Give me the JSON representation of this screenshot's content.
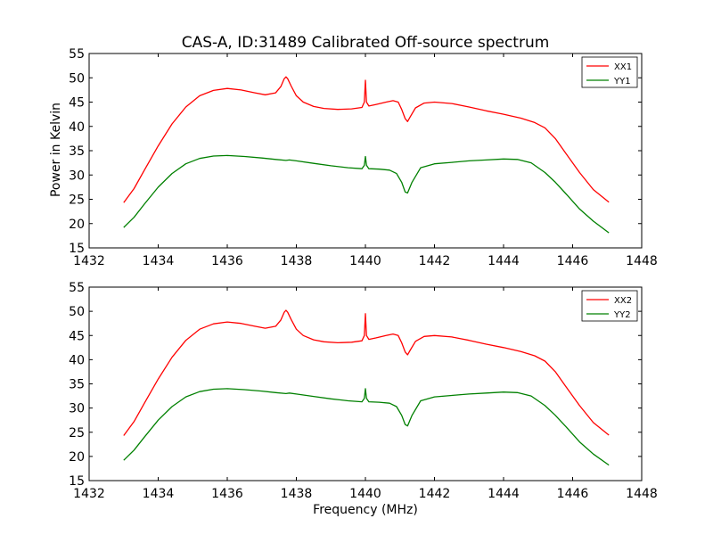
{
  "figure": {
    "title": "CAS-A, ID:31489 Calibrated Off-source spectrum",
    "xlabel": "Frequency (MHz)",
    "ylabel": "Power in Kelvin"
  },
  "colors": {
    "red": "#ff0000",
    "green": "#008000"
  },
  "chart_data": [
    {
      "type": "line",
      "title": "CAS-A, ID:31489 Calibrated Off-source spectrum",
      "xlabel": "",
      "ylabel": "Power in Kelvin",
      "xlim": [
        1432,
        1448
      ],
      "ylim": [
        15,
        55
      ],
      "xticks": [
        1432,
        1434,
        1436,
        1438,
        1440,
        1442,
        1444,
        1446,
        1448
      ],
      "yticks": [
        15,
        20,
        25,
        30,
        35,
        40,
        45,
        50,
        55
      ],
      "grid": false,
      "legend": "top-right",
      "series": [
        {
          "name": "XX1",
          "color": "#ff0000",
          "x": [
            1433.0,
            1433.3,
            1433.6,
            1434.0,
            1434.4,
            1434.8,
            1435.2,
            1435.6,
            1436.0,
            1436.4,
            1436.8,
            1437.1,
            1437.4,
            1437.55,
            1437.65,
            1437.7,
            1437.75,
            1437.85,
            1438.0,
            1438.2,
            1438.5,
            1438.8,
            1439.2,
            1439.6,
            1439.9,
            1439.97,
            1440.0,
            1440.03,
            1440.1,
            1440.3,
            1440.6,
            1440.8,
            1440.95,
            1441.05,
            1441.15,
            1441.22,
            1441.3,
            1441.45,
            1441.7,
            1442.0,
            1442.5,
            1443.0,
            1443.5,
            1444.0,
            1444.5,
            1444.9,
            1445.2,
            1445.5,
            1445.8,
            1446.2,
            1446.6,
            1447.05
          ],
          "y": [
            24.3,
            27.2,
            31.0,
            36.0,
            40.5,
            44.0,
            46.3,
            47.4,
            47.8,
            47.5,
            46.9,
            46.5,
            46.9,
            48.2,
            49.8,
            50.2,
            49.8,
            48.3,
            46.3,
            45.0,
            44.1,
            43.7,
            43.5,
            43.6,
            43.9,
            45.0,
            49.5,
            45.0,
            44.2,
            44.5,
            45.0,
            45.3,
            45.0,
            43.5,
            41.6,
            41.0,
            42.0,
            43.8,
            44.8,
            45.0,
            44.7,
            44.0,
            43.2,
            42.5,
            41.7,
            40.8,
            39.7,
            37.5,
            34.5,
            30.5,
            27.0,
            24.4
          ]
        },
        {
          "name": "YY1",
          "color": "#008000",
          "x": [
            1433.0,
            1433.3,
            1433.6,
            1434.0,
            1434.4,
            1434.8,
            1435.2,
            1435.6,
            1436.0,
            1436.5,
            1437.0,
            1437.4,
            1437.7,
            1437.8,
            1438.0,
            1438.5,
            1439.0,
            1439.5,
            1439.9,
            1439.97,
            1440.0,
            1440.03,
            1440.1,
            1440.4,
            1440.7,
            1440.9,
            1441.05,
            1441.15,
            1441.22,
            1441.35,
            1441.6,
            1442.0,
            1442.5,
            1443.0,
            1443.5,
            1444.0,
            1444.4,
            1444.8,
            1445.2,
            1445.5,
            1445.8,
            1446.2,
            1446.6,
            1447.05
          ],
          "y": [
            19.2,
            21.3,
            24.0,
            27.5,
            30.3,
            32.3,
            33.4,
            33.9,
            34.0,
            33.8,
            33.5,
            33.2,
            33.0,
            33.1,
            32.9,
            32.4,
            31.9,
            31.5,
            31.3,
            32.0,
            33.8,
            32.0,
            31.3,
            31.2,
            31.0,
            30.3,
            28.5,
            26.5,
            26.3,
            28.5,
            31.5,
            32.3,
            32.6,
            32.9,
            33.1,
            33.3,
            33.2,
            32.5,
            30.5,
            28.5,
            26.2,
            23.0,
            20.5,
            18.1
          ]
        }
      ]
    },
    {
      "type": "line",
      "title": "",
      "xlabel": "Frequency (MHz)",
      "ylabel": "",
      "xlim": [
        1432,
        1448
      ],
      "ylim": [
        15,
        55
      ],
      "xticks": [
        1432,
        1434,
        1436,
        1438,
        1440,
        1442,
        1444,
        1446,
        1448
      ],
      "yticks": [
        15,
        20,
        25,
        30,
        35,
        40,
        45,
        50,
        55
      ],
      "grid": false,
      "legend": "top-right",
      "series": [
        {
          "name": "XX2",
          "color": "#ff0000",
          "x": [
            1433.0,
            1433.3,
            1433.6,
            1434.0,
            1434.4,
            1434.8,
            1435.2,
            1435.6,
            1436.0,
            1436.4,
            1436.8,
            1437.1,
            1437.4,
            1437.55,
            1437.65,
            1437.7,
            1437.75,
            1437.85,
            1438.0,
            1438.2,
            1438.5,
            1438.8,
            1439.2,
            1439.6,
            1439.9,
            1439.97,
            1440.0,
            1440.03,
            1440.1,
            1440.3,
            1440.6,
            1440.8,
            1440.95,
            1441.05,
            1441.15,
            1441.22,
            1441.3,
            1441.45,
            1441.7,
            1442.0,
            1442.5,
            1443.0,
            1443.5,
            1444.0,
            1444.5,
            1444.9,
            1445.2,
            1445.5,
            1445.8,
            1446.2,
            1446.6,
            1447.05
          ],
          "y": [
            24.3,
            27.2,
            31.0,
            36.0,
            40.5,
            44.0,
            46.3,
            47.4,
            47.8,
            47.5,
            46.9,
            46.5,
            46.9,
            48.2,
            49.8,
            50.2,
            49.8,
            48.3,
            46.3,
            45.0,
            44.1,
            43.7,
            43.5,
            43.6,
            43.9,
            45.0,
            49.5,
            45.0,
            44.2,
            44.5,
            45.0,
            45.3,
            45.0,
            43.5,
            41.6,
            41.0,
            42.0,
            43.8,
            44.8,
            45.0,
            44.7,
            44.0,
            43.2,
            42.5,
            41.7,
            40.8,
            39.7,
            37.5,
            34.5,
            30.5,
            27.0,
            24.4
          ]
        },
        {
          "name": "YY2",
          "color": "#008000",
          "x": [
            1433.0,
            1433.3,
            1433.6,
            1434.0,
            1434.4,
            1434.8,
            1435.2,
            1435.6,
            1436.0,
            1436.5,
            1437.0,
            1437.4,
            1437.7,
            1437.8,
            1438.0,
            1438.5,
            1439.0,
            1439.5,
            1439.9,
            1439.97,
            1440.0,
            1440.03,
            1440.1,
            1440.4,
            1440.7,
            1440.9,
            1441.05,
            1441.15,
            1441.22,
            1441.35,
            1441.6,
            1442.0,
            1442.5,
            1443.0,
            1443.5,
            1444.0,
            1444.4,
            1444.8,
            1445.2,
            1445.5,
            1445.8,
            1446.2,
            1446.6,
            1447.05
          ],
          "y": [
            19.2,
            21.3,
            24.0,
            27.5,
            30.3,
            32.3,
            33.4,
            33.9,
            34.0,
            33.8,
            33.5,
            33.2,
            33.0,
            33.1,
            32.9,
            32.4,
            31.9,
            31.5,
            31.3,
            32.0,
            34.0,
            32.0,
            31.3,
            31.2,
            31.0,
            30.3,
            28.5,
            26.6,
            26.3,
            28.5,
            31.5,
            32.3,
            32.6,
            32.9,
            33.1,
            33.3,
            33.2,
            32.5,
            30.5,
            28.5,
            26.2,
            23.0,
            20.5,
            18.2
          ]
        }
      ]
    }
  ]
}
